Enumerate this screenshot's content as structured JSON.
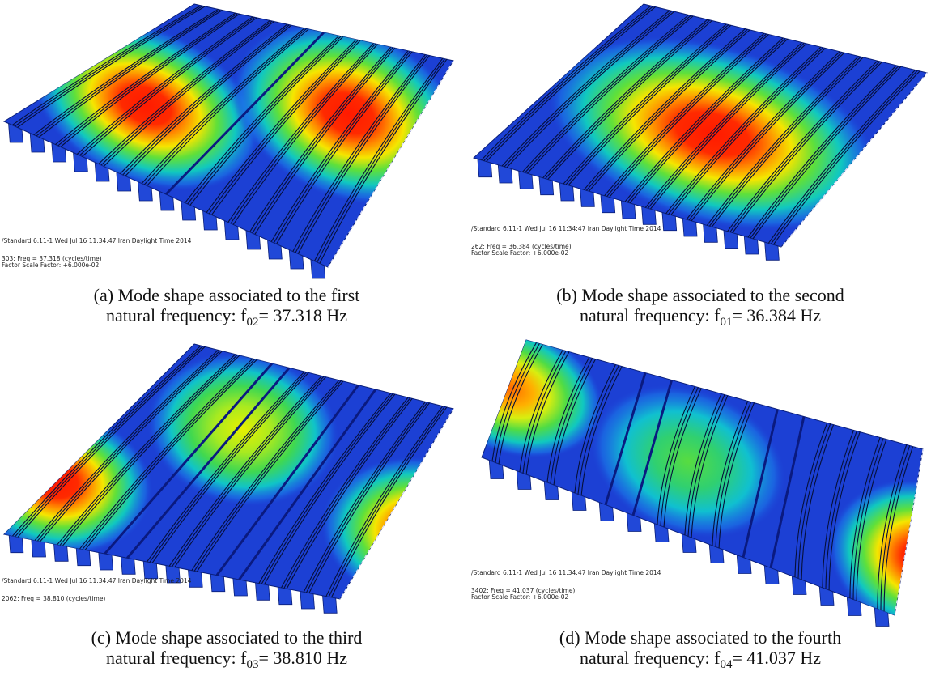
{
  "panels": [
    {
      "caption": {
        "line1": "(a) Mode shape associated to the first",
        "line2_prefix": "natural frequency: f",
        "subscript": "02",
        "line2_suffix": "= 37.318 Hz"
      },
      "software_text": [
        "/Standard 6.11-1   Wed Jul 16 11:34:47 Iran Daylight Time 2014",
        "303:   Freq =  37.318   (cycles/time)",
        "Factor Scale Factor: +6.000e-02"
      ]
    },
    {
      "caption": {
        "line1": "(b) Mode shape associated to the second",
        "line2_prefix": "natural frequency: f",
        "subscript": "01",
        "line2_suffix": "= 36.384 Hz"
      },
      "software_text": [
        "/Standard 6.11-1   Wed Jul 16 11:34:47 Iran Daylight Time 2014",
        "262:   Freq =  36.384   (cycles/time)",
        "Factor Scale Factor: +6.000e-02"
      ]
    },
    {
      "caption": {
        "line1": "(c) Mode shape associated to the third",
        "line2_prefix": "natural frequency: f",
        "subscript": "03",
        "line2_suffix": "= 38.810 Hz"
      },
      "software_text": [
        "/Standard 6.11-1   Wed Jul 16 11:34:47 Iran Daylight Time 2014",
        "2062:   Freq =  38.810   (cycles/time)"
      ]
    },
    {
      "caption": {
        "line1": "(d) Mode shape associated to the fourth",
        "line2_prefix": "natural frequency: f",
        "subscript": "04",
        "line2_suffix": "= 41.037 Hz"
      },
      "software_text": [
        "/Standard 6.11-1   Wed Jul 16 11:34:47 Iran Daylight Time 2014",
        "3402:   Freq =  41.037   (cycles/time)",
        "Factor Scale Factor: +6.000e-02"
      ]
    }
  ]
}
